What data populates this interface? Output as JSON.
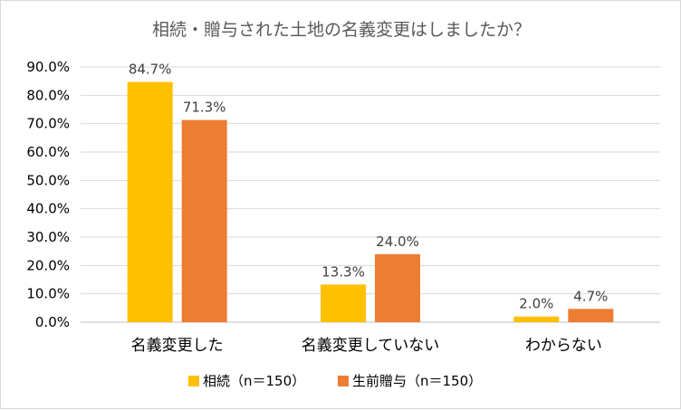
{
  "chart_data": {
    "type": "bar",
    "title": "相続・贈与された土地の名義変更はしましたか？",
    "categories": [
      "名義変更した",
      "名義変更していない",
      "わからない"
    ],
    "series": [
      {
        "name": "相続（n＝150）",
        "values": [
          84.7,
          13.3,
          2.0
        ],
        "labels": [
          "84.7%",
          "13.3%",
          "2.0%"
        ],
        "color": "#ffc000"
      },
      {
        "name": "生前贈与（n＝150）",
        "values": [
          71.3,
          24.0,
          4.7
        ],
        "labels": [
          "71.3%",
          "24.0%",
          "4.7%"
        ],
        "color": "#ed7d31"
      }
    ],
    "y_ticks": [
      "0.0%",
      "10.0%",
      "20.0%",
      "30.0%",
      "40.0%",
      "50.0%",
      "60.0%",
      "70.0%",
      "80.0%",
      "90.0%"
    ],
    "ylim": [
      0,
      90
    ],
    "grid": true,
    "legend_position": "bottom"
  }
}
